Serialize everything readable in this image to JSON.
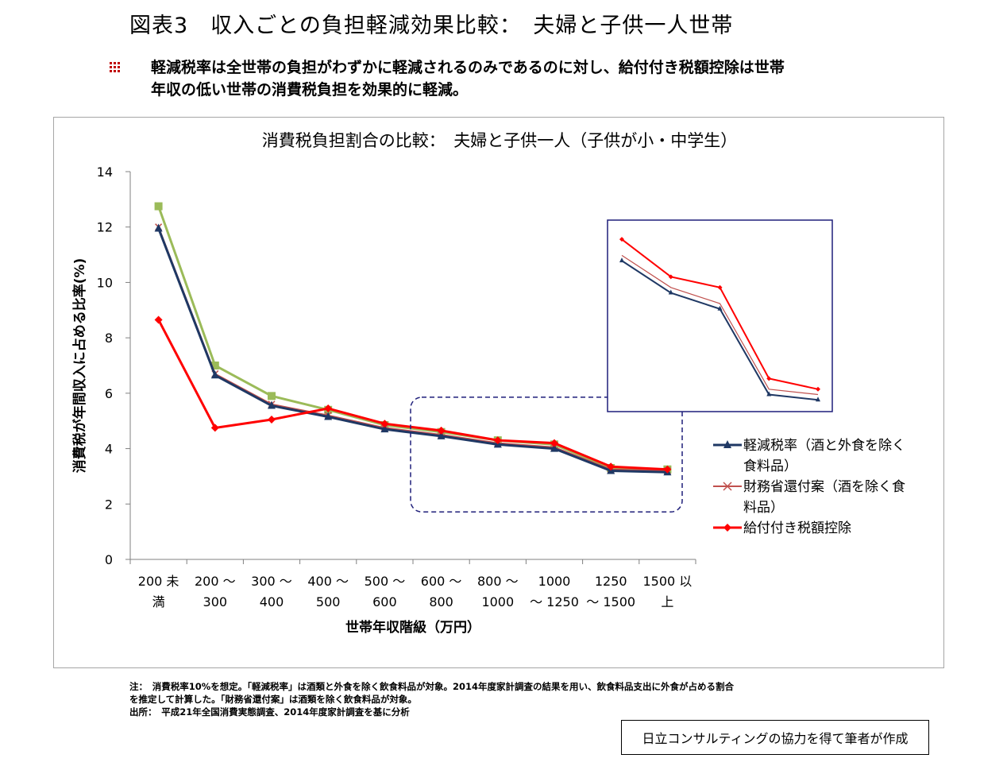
{
  "slide_title": "図表3　収入ごとの負担軽減効果比較：　夫婦と子供一人世帯",
  "bullet_text_line1": "軽減税率は全世帯の負担がわずかに軽減されるのみであるのに対し、給付付き税額控除は世帯",
  "bullet_text_line2": "年収の低い世帯の消費税負担を効果的に軽減。",
  "notes": {
    "line1": "注：　消費税率10%を想定。「軽減税率」は酒類と外食を除く飲食料品が対象。2014年度家計調査の結果を用い、飲食料品支出に外食が占める割合",
    "line2": "を推定して計算した。「財務省還付案」は酒類を除く飲食料品が対象。",
    "line3": "出所：　平成21年全国消費実態調査、2014年度家計調査を基に分析"
  },
  "credit": "日立コンサルティングの協力を得て筆者が作成",
  "chart_data": {
    "type": "line",
    "title": "消費税負担割合の比較：　夫婦と子供一人（子供が小・中学生）",
    "xlabel": "世帯年収階級（万円）",
    "ylabel": "消費税が年間収入に占める比率(%)",
    "ylim": [
      0,
      14
    ],
    "yticks": [
      0,
      2,
      4,
      6,
      8,
      10,
      12,
      14
    ],
    "categories": [
      "200 未満",
      "200 ～ 300",
      "300 ～ 400",
      "400 ～ 500",
      "500 ～ 600",
      "600 ～ 800",
      "800 ～ 1000",
      "1000 ～ 1250",
      "1250 ～ 1500",
      "1500 以上"
    ],
    "category_label_lines": [
      [
        "200 未",
        "満"
      ],
      [
        "200 ～",
        "300"
      ],
      [
        "300 ～",
        "400"
      ],
      [
        "400 ～",
        "500"
      ],
      [
        "500 ～",
        "600"
      ],
      [
        "600 ～",
        "800"
      ],
      [
        "800 ～",
        "1000"
      ],
      [
        "1000",
        "～ 1250"
      ],
      [
        "1250",
        "～ 1500"
      ],
      [
        "1500 以",
        "上"
      ]
    ],
    "grid": false,
    "legend_position": "right",
    "series": [
      {
        "values": [
          12.75,
          7.0,
          5.9,
          5.4,
          4.85,
          4.6,
          4.3,
          4.15,
          3.3,
          3.25
        ],
        "color": "#9bbb59",
        "marker": "square",
        "in_legend": false
      },
      {
        "name_lines": [
          "財務省還付案（酒を除く食",
          "料品）"
        ],
        "values": [
          12.0,
          6.7,
          5.6,
          5.2,
          4.75,
          4.5,
          4.2,
          4.05,
          3.25,
          3.2
        ],
        "color": "#c0504d",
        "marker": "x",
        "in_legend": true
      },
      {
        "name_lines": [
          "軽減税率（酒と外食を除く",
          "食料品）"
        ],
        "values": [
          11.95,
          6.65,
          5.55,
          5.15,
          4.7,
          4.45,
          4.15,
          4.0,
          3.2,
          3.15
        ],
        "color": "#1f3864",
        "marker": "triangle",
        "in_legend": true
      },
      {
        "name_lines": [
          "給付付き税額控除"
        ],
        "values": [
          8.65,
          4.75,
          5.05,
          5.45,
          4.9,
          4.65,
          4.3,
          4.2,
          3.35,
          3.25
        ],
        "color": "#ff0000",
        "marker": "diamond",
        "in_legend": true
      }
    ],
    "legend_order": [
      2,
      1,
      3
    ],
    "zoom_inset": {
      "from_category": 5,
      "to_category": 9
    }
  },
  "colors": {
    "bullet": "#c00000",
    "axis": "#808080",
    "highlight_box": "#1f1f7a"
  }
}
